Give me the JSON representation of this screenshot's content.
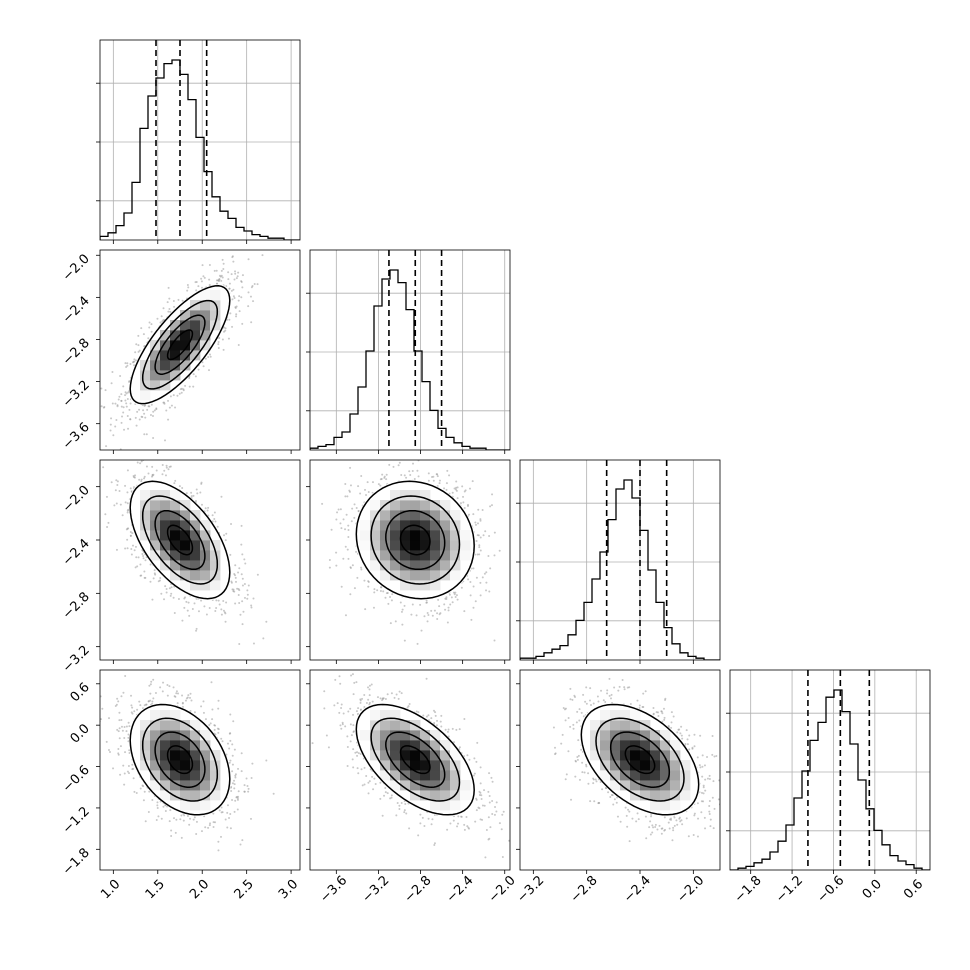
{
  "chart_data": {
    "type": "corner",
    "grid": true,
    "params": [
      {
        "mean": 1.75,
        "std": 0.28,
        "q": [
          1.48,
          1.75,
          2.05
        ],
        "range": [
          0.85,
          3.1
        ],
        "ticks": [
          "1.0",
          "1.5",
          "2.0",
          "2.5",
          "3.0"
        ],
        "tick_values": [
          1.0,
          1.5,
          2.0,
          2.5,
          3.0
        ]
      },
      {
        "mean": -2.85,
        "std": 0.28,
        "q": [
          -3.1,
          -2.85,
          -2.6
        ],
        "range": [
          -3.85,
          -1.95
        ],
        "ticks": [
          "−3.6",
          "−3.2",
          "−2.8",
          "−2.4",
          "−2.0"
        ],
        "tick_values": [
          -3.6,
          -3.2,
          -2.8,
          -2.4,
          -2.0
        ]
      },
      {
        "mean": -2.4,
        "std": 0.22,
        "q": [
          -2.65,
          -2.4,
          -2.2
        ],
        "range": [
          -3.3,
          -1.8
        ],
        "ticks": [
          "−3.2",
          "−2.8",
          "−2.4",
          "−2.0"
        ],
        "tick_values": [
          -3.2,
          -2.8,
          -2.4,
          -2.0
        ]
      },
      {
        "mean": -0.5,
        "std": 0.4,
        "q": [
          -0.97,
          -0.5,
          -0.08
        ],
        "range": [
          -2.1,
          0.8
        ],
        "ticks": [
          "−1.8",
          "−1.2",
          "−0.6",
          "0.0",
          "0.6"
        ],
        "tick_values": [
          -1.8,
          -1.2,
          -0.6,
          0.0,
          0.6
        ]
      }
    ],
    "y_ticks": {
      "1": [
        "−2.0",
        "−2.4",
        "−2.8",
        "−3.2",
        "−3.6"
      ],
      "2": [
        "−2.0",
        "−2.4",
        "−2.8",
        "−3.2"
      ],
      "3": [
        "0.6",
        "0.0",
        "−0.6",
        "−1.2",
        "−1.8"
      ]
    },
    "y_tick_values": {
      "1": [
        -2.0,
        -2.4,
        -2.8,
        -3.2,
        -3.6
      ],
      "2": [
        -2.0,
        -2.4,
        -2.8,
        -3.2
      ],
      "3": [
        0.6,
        0.0,
        -0.6,
        -1.2,
        -1.8
      ]
    },
    "correlations": {
      "1-0": 0.75,
      "2-0": -0.55,
      "2-1": -0.1,
      "3-0": -0.35,
      "3-1": -0.55,
      "3-2": -0.45
    },
    "histograms": [
      {
        "bins": 25,
        "counts": [
          0.02,
          0.04,
          0.08,
          0.15,
          0.32,
          0.62,
          0.8,
          0.9,
          0.98,
          1.0,
          0.92,
          0.78,
          0.57,
          0.38,
          0.24,
          0.16,
          0.12,
          0.07,
          0.05,
          0.03,
          0.02,
          0.01,
          0.01,
          0.0,
          0.0
        ]
      },
      {
        "bins": 25,
        "counts": [
          0.01,
          0.02,
          0.03,
          0.07,
          0.1,
          0.2,
          0.35,
          0.55,
          0.8,
          0.95,
          1.0,
          0.93,
          0.78,
          0.55,
          0.38,
          0.22,
          0.12,
          0.07,
          0.04,
          0.02,
          0.01,
          0.01,
          0.0,
          0.0,
          0.0
        ]
      },
      {
        "bins": 25,
        "counts": [
          0.01,
          0.01,
          0.02,
          0.04,
          0.06,
          0.08,
          0.14,
          0.22,
          0.32,
          0.45,
          0.6,
          0.78,
          0.95,
          1.0,
          0.9,
          0.72,
          0.5,
          0.32,
          0.18,
          0.09,
          0.04,
          0.02,
          0.01,
          0.0,
          0.0
        ]
      },
      {
        "bins": 25,
        "counts": [
          0.0,
          0.01,
          0.02,
          0.04,
          0.06,
          0.1,
          0.16,
          0.25,
          0.4,
          0.55,
          0.72,
          0.82,
          0.96,
          1.0,
          0.88,
          0.7,
          0.5,
          0.34,
          0.22,
          0.14,
          0.08,
          0.05,
          0.03,
          0.01,
          0.0
        ]
      }
    ],
    "title": "",
    "labels": [
      "",
      "",
      "",
      ""
    ]
  }
}
